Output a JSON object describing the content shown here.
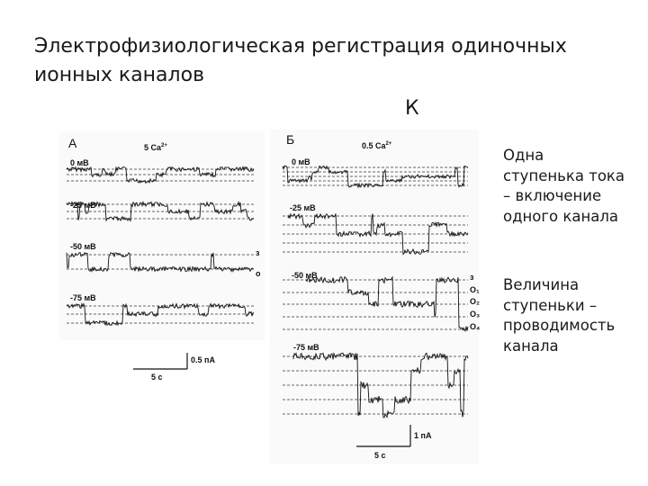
{
  "title_lines": [
    "Электрофизиологическая регистрация одиночных",
    "ионных каналов"
  ],
  "k_label": "К",
  "side_text_1": [
    "Одна",
    "ступенька тока",
    "– включение",
    "одного канала"
  ],
  "side_text_2": [
    "Величина",
    "ступеньки –",
    "проводимость",
    "канала"
  ],
  "panel_a": {
    "letter": "А",
    "ca_label": "5 Ca",
    "ca_sup": "2+",
    "traces": [
      {
        "label": "0 мВ",
        "levels": 3
      },
      {
        "label": "-25 мВ",
        "levels": 3
      },
      {
        "label": "-50 мВ",
        "levels": 2
      },
      {
        "label": "-75 мВ",
        "levels": 3
      }
    ],
    "state_labels": [
      "з",
      "о"
    ],
    "scale_amp": "0.5 пА",
    "scale_time": "5 с"
  },
  "panel_b": {
    "letter": "Б",
    "ca_label": "0.5 Ca",
    "ca_sup": "2+",
    "traces": [
      {
        "label": "0 мВ"
      },
      {
        "label": "-25 мВ"
      },
      {
        "label": "-50 мВ"
      },
      {
        "label": "-75 мВ"
      }
    ],
    "state_labels": [
      "з",
      "O₁",
      "O₂",
      "O₃",
      "O₄"
    ],
    "scale_amp": "1 пА",
    "scale_time": "5 с"
  },
  "colors": {
    "trace": "#111111",
    "guide": "#333333",
    "text": "#1a1a1a"
  }
}
